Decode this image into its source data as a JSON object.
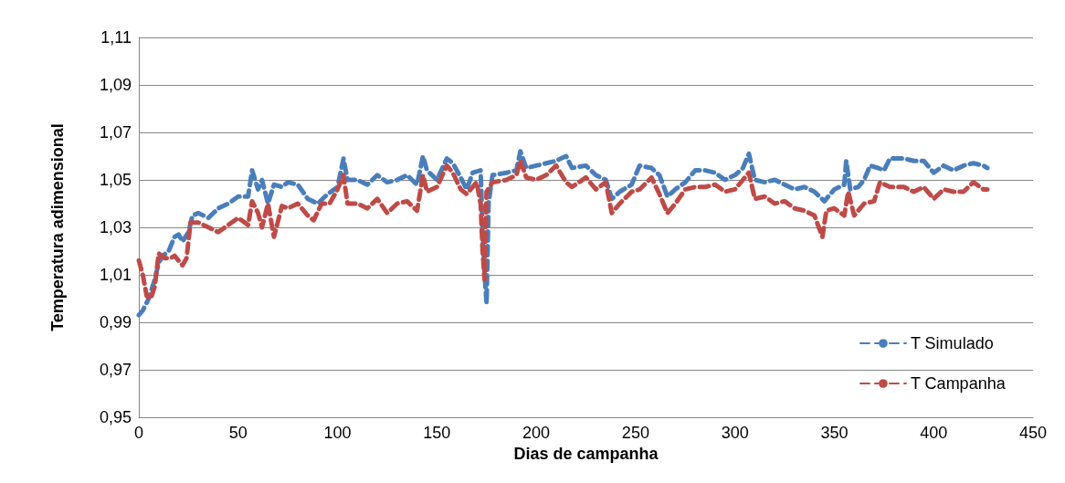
{
  "chart_data": {
    "type": "line",
    "xlabel": "Dias de campanha",
    "ylabel": "Temperatura adimensional",
    "xlim": [
      0,
      450
    ],
    "xticks": [
      0,
      50,
      100,
      150,
      200,
      250,
      300,
      350,
      400,
      450
    ],
    "ylim": [
      0.95,
      1.11
    ],
    "yticks": [
      {
        "value": 0.95,
        "label": "0,95"
      },
      {
        "value": 0.97,
        "label": "0,97"
      },
      {
        "value": 0.99,
        "label": "0,99"
      },
      {
        "value": 1.01,
        "label": "1,01"
      },
      {
        "value": 1.03,
        "label": "1,03"
      },
      {
        "value": 1.05,
        "label": "1,05"
      },
      {
        "value": 1.07,
        "label": "1,07"
      },
      {
        "value": 1.09,
        "label": "1,09"
      },
      {
        "value": 1.11,
        "label": "1,11"
      }
    ],
    "grid": "y",
    "legend": "bottom right",
    "marker": "none",
    "line_style": "dashed",
    "series": [
      {
        "name": "T Simulado",
        "color": "#4a7ebb",
        "x": [
          0,
          2,
          5,
          8,
          10,
          12,
          15,
          18,
          20,
          22,
          25,
          27,
          30,
          35,
          40,
          45,
          50,
          55,
          57,
          60,
          62,
          65,
          68,
          72,
          75,
          80,
          85,
          90,
          95,
          100,
          103,
          105,
          110,
          115,
          120,
          125,
          130,
          135,
          140,
          143,
          145,
          150,
          155,
          158,
          162,
          165,
          168,
          172,
          173,
          174,
          175,
          176,
          178,
          185,
          190,
          192,
          195,
          200,
          205,
          210,
          215,
          218,
          225,
          230,
          235,
          238,
          242,
          248,
          252,
          258,
          262,
          266,
          270,
          275,
          280,
          285,
          290,
          295,
          300,
          304,
          307,
          310,
          315,
          320,
          325,
          330,
          335,
          340,
          345,
          350,
          355,
          356,
          358,
          362,
          365,
          368,
          372,
          375,
          378,
          385,
          390,
          395,
          400,
          405,
          410,
          415,
          420,
          425,
          427
        ],
        "values": [
          0.993,
          0.995,
          1.0,
          1.008,
          1.015,
          1.018,
          1.02,
          1.026,
          1.027,
          1.024,
          1.028,
          1.035,
          1.036,
          1.034,
          1.038,
          1.04,
          1.043,
          1.043,
          1.054,
          1.046,
          1.05,
          1.04,
          1.048,
          1.047,
          1.049,
          1.048,
          1.042,
          1.04,
          1.044,
          1.047,
          1.059,
          1.05,
          1.05,
          1.048,
          1.052,
          1.049,
          1.05,
          1.052,
          1.048,
          1.06,
          1.054,
          1.05,
          1.059,
          1.057,
          1.051,
          1.046,
          1.053,
          1.054,
          1.03,
          1.01,
          0.998,
          1.04,
          1.052,
          1.053,
          1.054,
          1.062,
          1.055,
          1.056,
          1.057,
          1.058,
          1.06,
          1.055,
          1.056,
          1.052,
          1.05,
          1.042,
          1.045,
          1.048,
          1.056,
          1.055,
          1.052,
          1.043,
          1.046,
          1.049,
          1.054,
          1.054,
          1.053,
          1.05,
          1.052,
          1.055,
          1.061,
          1.05,
          1.049,
          1.05,
          1.048,
          1.046,
          1.047,
          1.045,
          1.041,
          1.046,
          1.048,
          1.058,
          1.046,
          1.047,
          1.05,
          1.056,
          1.055,
          1.054,
          1.059,
          1.059,
          1.058,
          1.058,
          1.053,
          1.056,
          1.054,
          1.056,
          1.057,
          1.056,
          1.055
        ]
      },
      {
        "name": "T Campanha",
        "color": "#be4b48",
        "x": [
          0,
          2,
          4,
          6,
          8,
          10,
          13,
          16,
          18,
          20,
          22,
          24,
          26,
          30,
          35,
          40,
          45,
          50,
          55,
          57,
          60,
          62,
          65,
          68,
          72,
          75,
          80,
          85,
          88,
          92,
          96,
          100,
          103,
          105,
          110,
          115,
          120,
          125,
          130,
          135,
          140,
          143,
          145,
          150,
          155,
          158,
          162,
          165,
          170,
          172,
          173,
          174,
          175,
          178,
          185,
          190,
          192,
          195,
          200,
          205,
          210,
          215,
          218,
          225,
          230,
          235,
          238,
          242,
          248,
          252,
          258,
          262,
          266,
          270,
          275,
          280,
          285,
          290,
          295,
          300,
          304,
          307,
          310,
          315,
          320,
          325,
          330,
          335,
          340,
          344,
          346,
          350,
          355,
          357,
          360,
          365,
          370,
          373,
          378,
          385,
          390,
          395,
          400,
          405,
          410,
          415,
          420,
          425,
          427
        ],
        "values": [
          1.016,
          1.01,
          1.001,
          1.0,
          1.005,
          1.019,
          1.017,
          1.017,
          1.018,
          1.016,
          1.014,
          1.017,
          1.032,
          1.032,
          1.03,
          1.028,
          1.031,
          1.034,
          1.031,
          1.041,
          1.036,
          1.03,
          1.04,
          1.026,
          1.039,
          1.038,
          1.04,
          1.035,
          1.033,
          1.04,
          1.04,
          1.046,
          1.052,
          1.04,
          1.04,
          1.038,
          1.042,
          1.036,
          1.04,
          1.041,
          1.037,
          1.052,
          1.045,
          1.047,
          1.056,
          1.053,
          1.046,
          1.044,
          1.049,
          1.04,
          1.02,
          1.008,
          1.045,
          1.049,
          1.05,
          1.052,
          1.058,
          1.051,
          1.05,
          1.052,
          1.056,
          1.049,
          1.047,
          1.051,
          1.046,
          1.049,
          1.036,
          1.04,
          1.045,
          1.046,
          1.051,
          1.044,
          1.036,
          1.04,
          1.046,
          1.047,
          1.047,
          1.048,
          1.045,
          1.046,
          1.05,
          1.053,
          1.042,
          1.043,
          1.04,
          1.041,
          1.038,
          1.037,
          1.035,
          1.026,
          1.037,
          1.038,
          1.035,
          1.045,
          1.035,
          1.04,
          1.041,
          1.049,
          1.047,
          1.047,
          1.045,
          1.047,
          1.042,
          1.046,
          1.045,
          1.045,
          1.049,
          1.046,
          1.046
        ]
      }
    ]
  }
}
